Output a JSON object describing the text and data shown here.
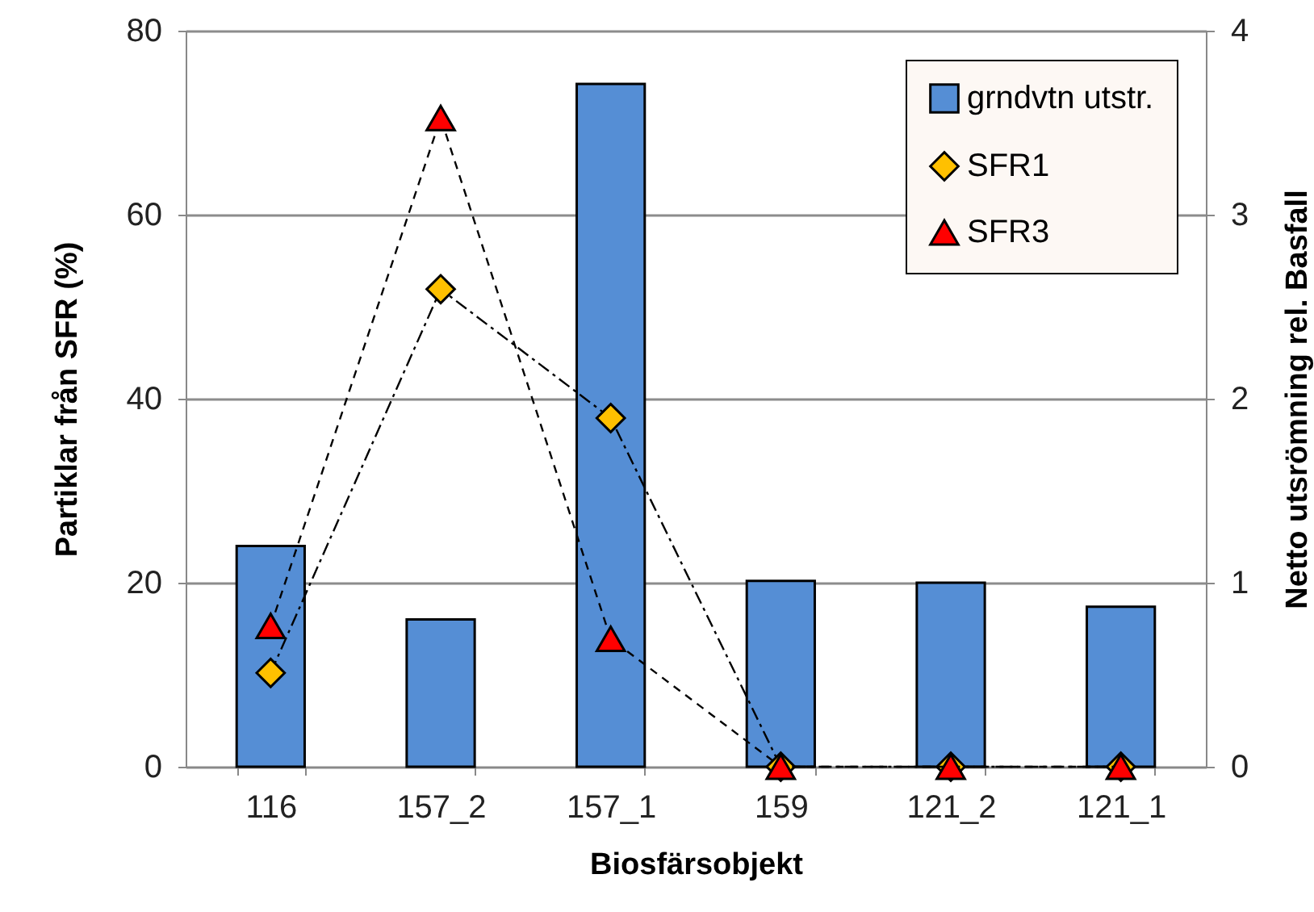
{
  "chart_data": {
    "type": "bar",
    "xlabel": "Biosfärsobjekt",
    "ylabel": "Partiklar från SFR (%)",
    "y2label": "Netto utsrömning rel. Basfall",
    "categories": [
      "116",
      "157_2",
      "157_1",
      "159",
      "121_2",
      "121_1"
    ],
    "series": [
      {
        "name": "grndvtn utstr.",
        "axis": "y2",
        "color": "#558ed5",
        "values": [
          1.2,
          0.8,
          3.71,
          1.01,
          1.0,
          0.87
        ]
      },
      {
        "name": "SFR1",
        "type": "line",
        "marker": "diamond",
        "line_style": "dashdot",
        "color": "#ffc000",
        "values": [
          10.2,
          51.9,
          37.9,
          0,
          0,
          0
        ]
      },
      {
        "name": "SFR3",
        "type": "line",
        "marker": "triangle",
        "line_style": "dashed",
        "color": "#ff0000",
        "values": [
          15.3,
          70.5,
          13.9,
          0,
          0,
          0
        ]
      }
    ],
    "ylim": [
      0,
      80
    ],
    "yticks": [
      0,
      20,
      40,
      60,
      80
    ],
    "y2lim": [
      0,
      4
    ],
    "y2ticks": [
      0,
      1,
      2,
      3,
      4
    ],
    "grid": "y",
    "legend": "top right"
  }
}
